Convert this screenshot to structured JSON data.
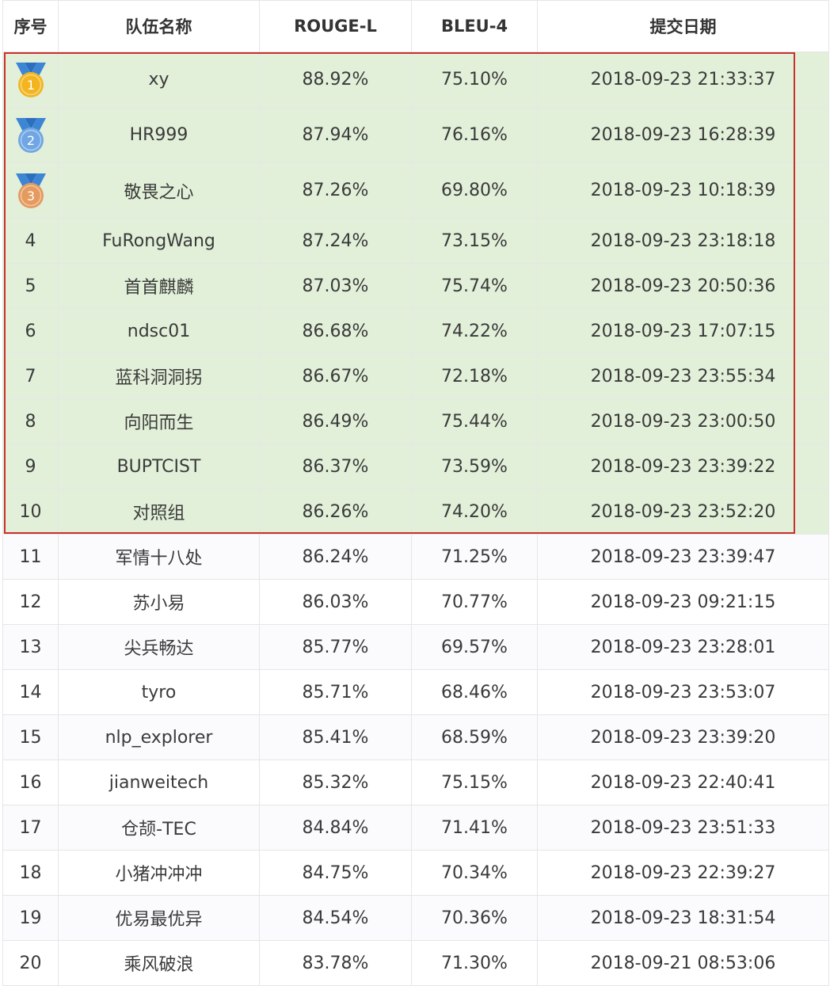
{
  "colors": {
    "top10_bg": "#e2f0d9",
    "highlight_border": "#c9302c",
    "gold": "#f3b51f",
    "silver_blue": "#6fa6e3",
    "bronze": "#e59a5e",
    "ribbon": "#3d86d6"
  },
  "table": {
    "headers": {
      "rank": "序号",
      "team": "队伍名称",
      "rouge": "ROUGE-L",
      "bleu": "BLEU-4",
      "date": "提交日期"
    },
    "rows": [
      {
        "rank": "1",
        "team": "xy",
        "rouge": "88.92%",
        "bleu": "75.10%",
        "date": "2018-09-23 21:33:37",
        "medal": "gold-medal-icon"
      },
      {
        "rank": "2",
        "team": "HR999",
        "rouge": "87.94%",
        "bleu": "76.16%",
        "date": "2018-09-23 16:28:39",
        "medal": "silver-medal-icon"
      },
      {
        "rank": "3",
        "team": "敬畏之心",
        "rouge": "87.26%",
        "bleu": "69.80%",
        "date": "2018-09-23 10:18:39",
        "medal": "bronze-medal-icon"
      },
      {
        "rank": "4",
        "team": "FuRongWang",
        "rouge": "87.24%",
        "bleu": "73.15%",
        "date": "2018-09-23 23:18:18"
      },
      {
        "rank": "5",
        "team": "首首麒麟",
        "rouge": "87.03%",
        "bleu": "75.74%",
        "date": "2018-09-23 20:50:36"
      },
      {
        "rank": "6",
        "team": "ndsc01",
        "rouge": "86.68%",
        "bleu": "74.22%",
        "date": "2018-09-23 17:07:15"
      },
      {
        "rank": "7",
        "team": "蓝科洞洞拐",
        "rouge": "86.67%",
        "bleu": "72.18%",
        "date": "2018-09-23 23:55:34"
      },
      {
        "rank": "8",
        "team": "向阳而生",
        "rouge": "86.49%",
        "bleu": "75.44%",
        "date": "2018-09-23 23:00:50"
      },
      {
        "rank": "9",
        "team": "BUPTCIST",
        "rouge": "86.37%",
        "bleu": "73.59%",
        "date": "2018-09-23 23:39:22"
      },
      {
        "rank": "10",
        "team": "对照组",
        "rouge": "86.26%",
        "bleu": "74.20%",
        "date": "2018-09-23 23:52:20"
      },
      {
        "rank": "11",
        "team": "军情十八处",
        "rouge": "86.24%",
        "bleu": "71.25%",
        "date": "2018-09-23 23:39:47"
      },
      {
        "rank": "12",
        "team": "苏小易",
        "rouge": "86.03%",
        "bleu": "70.77%",
        "date": "2018-09-23 09:21:15"
      },
      {
        "rank": "13",
        "team": "尖兵畅达",
        "rouge": "85.77%",
        "bleu": "69.57%",
        "date": "2018-09-23 23:28:01"
      },
      {
        "rank": "14",
        "team": "tyro",
        "rouge": "85.71%",
        "bleu": "68.46%",
        "date": "2018-09-23 23:53:07"
      },
      {
        "rank": "15",
        "team": "nlp_explorer",
        "rouge": "85.41%",
        "bleu": "68.59%",
        "date": "2018-09-23 23:39:20"
      },
      {
        "rank": "16",
        "team": "jianweitech",
        "rouge": "85.32%",
        "bleu": "75.15%",
        "date": "2018-09-23 22:40:41"
      },
      {
        "rank": "17",
        "team": "仓颉-TEC",
        "rouge": "84.84%",
        "bleu": "71.41%",
        "date": "2018-09-23 23:51:33"
      },
      {
        "rank": "18",
        "team": "小猪冲冲冲",
        "rouge": "84.75%",
        "bleu": "70.34%",
        "date": "2018-09-23 22:39:27"
      },
      {
        "rank": "19",
        "team": "优易最优异",
        "rouge": "84.54%",
        "bleu": "70.36%",
        "date": "2018-09-23 18:31:54"
      },
      {
        "rank": "20",
        "team": "乘风破浪",
        "rouge": "83.78%",
        "bleu": "71.30%",
        "date": "2018-09-21 08:53:06"
      }
    ]
  }
}
